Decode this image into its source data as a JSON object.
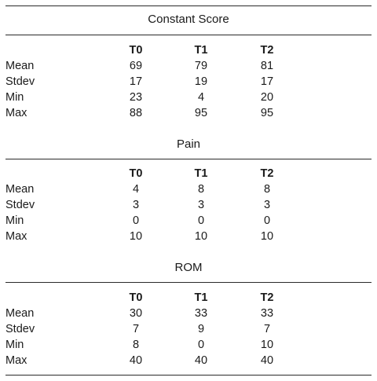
{
  "columns": [
    "T0",
    "T1",
    "T2"
  ],
  "sections": [
    {
      "title": "Constant Score",
      "rows": [
        {
          "label": "Mean",
          "values": [
            "69",
            "79",
            "81"
          ]
        },
        {
          "label": "Stdev",
          "values": [
            "17",
            "19",
            "17"
          ]
        },
        {
          "label": "Min",
          "values": [
            "23",
            "4",
            "20"
          ]
        },
        {
          "label": "Max",
          "values": [
            "88",
            "95",
            "95"
          ]
        }
      ]
    },
    {
      "title": "Pain",
      "rows": [
        {
          "label": "Mean",
          "values": [
            "4",
            "8",
            "8"
          ]
        },
        {
          "label": "Stdev",
          "values": [
            "3",
            "3",
            "3"
          ]
        },
        {
          "label": "Min",
          "values": [
            "0",
            "0",
            "0"
          ]
        },
        {
          "label": "Max",
          "values": [
            "10",
            "10",
            "10"
          ]
        }
      ]
    },
    {
      "title": "ROM",
      "rows": [
        {
          "label": "Mean",
          "values": [
            "30",
            "33",
            "33"
          ]
        },
        {
          "label": "Stdev",
          "values": [
            "7",
            "9",
            "7"
          ]
        },
        {
          "label": "Min",
          "values": [
            "8",
            "0",
            "10"
          ]
        },
        {
          "label": "Max",
          "values": [
            "40",
            "40",
            "40"
          ]
        }
      ]
    }
  ]
}
